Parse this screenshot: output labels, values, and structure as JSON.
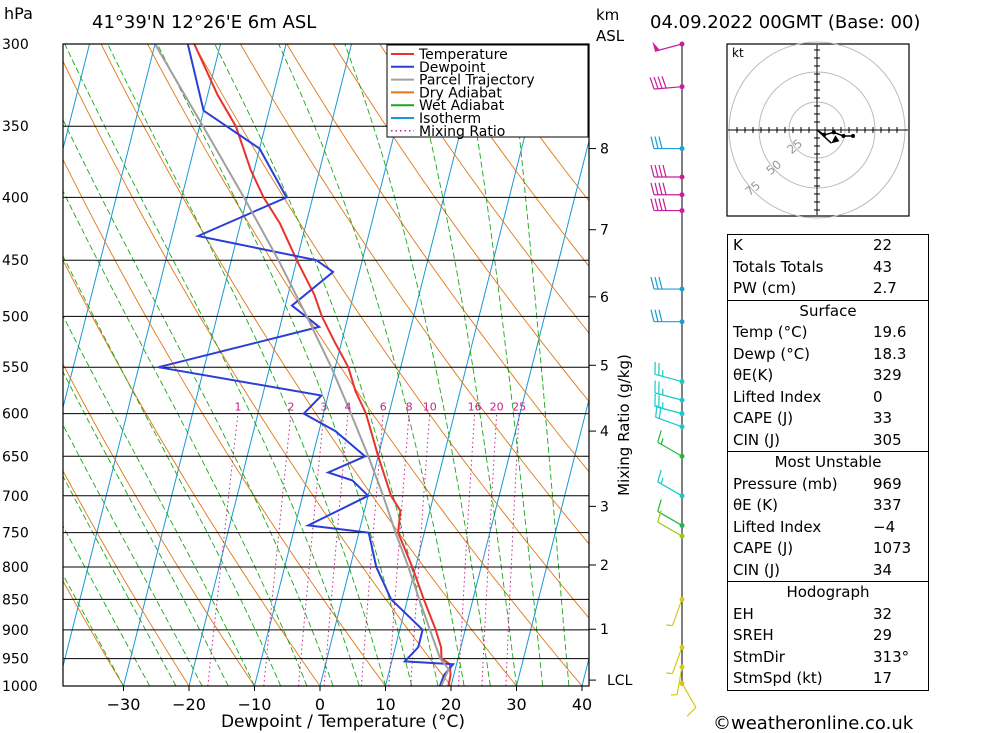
{
  "header": {
    "unit_left": "hPa",
    "location": "41°39'N  12°26'E  6m  ASL",
    "km_label": "km",
    "asl_label": "ASL",
    "date": "04.09.2022  00GMT  (Base: 00)"
  },
  "chart_data": {
    "type": "line",
    "title": "41°39'N  12°26'E  6m  ASL",
    "xlabel": "Dewpoint  /  Temperature  (°C)",
    "ylabel": "hPa",
    "xlim": [
      -40,
      40
    ],
    "ylim": [
      1000,
      300
    ],
    "y_scale": "log",
    "skew": "temperature lines skewed to the right with height",
    "pressure_ticks": [
      300,
      350,
      400,
      450,
      500,
      550,
      600,
      650,
      700,
      750,
      800,
      850,
      900,
      950,
      1000
    ],
    "temp_ticks": [
      -30,
      -20,
      -10,
      0,
      10,
      20,
      30,
      40
    ],
    "km_ticks": [
      {
        "label": "8",
        "p": 365
      },
      {
        "label": "7",
        "p": 425
      },
      {
        "label": "6",
        "p": 482
      },
      {
        "label": "5",
        "p": 548
      },
      {
        "label": "4",
        "p": 620
      },
      {
        "label": "3",
        "p": 714
      },
      {
        "label": "2",
        "p": 797
      },
      {
        "label": "1",
        "p": 899
      },
      {
        "label": "LCL",
        "p": 989
      }
    ],
    "mixing_ratio_label": "Mixing Ratio (g/kg)",
    "mixing_ratio_values": [
      "1",
      "2",
      "3",
      "4",
      "6",
      "8",
      "10",
      "16",
      "20",
      "25"
    ],
    "legend": [
      {
        "name": "Temperature",
        "color": "#e8322c",
        "style": "solid"
      },
      {
        "name": "Dewpoint",
        "color": "#2b3fd8",
        "style": "solid"
      },
      {
        "name": "Parcel Trajectory",
        "color": "#a0a0a0",
        "style": "solid"
      },
      {
        "name": "Dry Adiabat",
        "color": "#e07818",
        "style": "solid"
      },
      {
        "name": "Wet Adiabat",
        "color": "#18a818",
        "style": "solid"
      },
      {
        "name": "Isotherm",
        "color": "#1898d8",
        "style": "solid"
      },
      {
        "name": "Mixing Ratio",
        "color": "#c8208c",
        "style": "dotted"
      }
    ],
    "series": [
      {
        "name": "Temperature",
        "color": "#e8322c",
        "points": [
          [
            1000,
            19.6
          ],
          [
            980,
            19.5
          ],
          [
            960,
            19
          ],
          [
            950,
            17.5
          ],
          [
            930,
            17
          ],
          [
            900,
            15.5
          ],
          [
            850,
            12.5
          ],
          [
            800,
            9.5
          ],
          [
            750,
            6
          ],
          [
            720,
            5.5
          ],
          [
            700,
            3.5
          ],
          [
            650,
            0
          ],
          [
            600,
            -3.5
          ],
          [
            575,
            -6
          ],
          [
            550,
            -8
          ],
          [
            525,
            -11
          ],
          [
            500,
            -14
          ],
          [
            480,
            -16
          ],
          [
            450,
            -20
          ],
          [
            420,
            -24
          ],
          [
            400,
            -27.5
          ],
          [
            380,
            -30.5
          ],
          [
            350,
            -34.5
          ],
          [
            330,
            -38.5
          ],
          [
            300,
            -44
          ]
        ]
      },
      {
        "name": "Dewpoint",
        "color": "#2b3fd8",
        "points": [
          [
            1000,
            18.3
          ],
          [
            980,
            18.5
          ],
          [
            960,
            19.5
          ],
          [
            955,
            12
          ],
          [
            930,
            13.5
          ],
          [
            900,
            13.5
          ],
          [
            850,
            7.5
          ],
          [
            800,
            4
          ],
          [
            750,
            1.5
          ],
          [
            740,
            -8
          ],
          [
            700,
            0
          ],
          [
            680,
            -3
          ],
          [
            670,
            -7
          ],
          [
            650,
            -2
          ],
          [
            620,
            -7.5
          ],
          [
            600,
            -13
          ],
          [
            580,
            -11
          ],
          [
            550,
            -37
          ],
          [
            510,
            -14
          ],
          [
            490,
            -19
          ],
          [
            460,
            -14
          ],
          [
            450,
            -17
          ],
          [
            430,
            -36
          ],
          [
            400,
            -24
          ],
          [
            365,
            -30
          ],
          [
            340,
            -40
          ],
          [
            300,
            -45
          ]
        ]
      },
      {
        "name": "Parcel Trajectory",
        "color": "#a0a0a0",
        "points": [
          [
            1000,
            18.5
          ],
          [
            969,
            19
          ],
          [
            950,
            17.3
          ],
          [
            900,
            14.6
          ],
          [
            850,
            11.8
          ],
          [
            800,
            8.9
          ],
          [
            750,
            5.6
          ],
          [
            700,
            2.3
          ],
          [
            650,
            -1.5
          ],
          [
            600,
            -5.8
          ],
          [
            550,
            -10.6
          ],
          [
            500,
            -16.3
          ],
          [
            450,
            -22.8
          ],
          [
            400,
            -30.5
          ],
          [
            350,
            -39.5
          ],
          [
            300,
            -50
          ]
        ]
      }
    ],
    "wind_barbs": [
      {
        "p": 300,
        "dir": 255,
        "speed": 50,
        "color": "#c81e9c"
      },
      {
        "p": 325,
        "dir": 265,
        "speed": 40,
        "color": "#c81e9c"
      },
      {
        "p": 365,
        "dir": 270,
        "speed": 30,
        "color": "#1aa0d8"
      },
      {
        "p": 385,
        "dir": 270,
        "speed": 40,
        "color": "#c81e9c"
      },
      {
        "p": 398,
        "dir": 270,
        "speed": 40,
        "color": "#c81e9c"
      },
      {
        "p": 410,
        "dir": 270,
        "speed": 40,
        "color": "#c81e9c"
      },
      {
        "p": 475,
        "dir": 270,
        "speed": 30,
        "color": "#1aa0d8"
      },
      {
        "p": 505,
        "dir": 270,
        "speed": 30,
        "color": "#1aa0d8"
      },
      {
        "p": 565,
        "dir": 285,
        "speed": 25,
        "color": "#18c8c8"
      },
      {
        "p": 585,
        "dir": 285,
        "speed": 25,
        "color": "#18c8c8"
      },
      {
        "p": 600,
        "dir": 285,
        "speed": 25,
        "color": "#18c8c8"
      },
      {
        "p": 615,
        "dir": 290,
        "speed": 20,
        "color": "#18c8c8"
      },
      {
        "p": 650,
        "dir": 300,
        "speed": 15,
        "color": "#20b840"
      },
      {
        "p": 700,
        "dir": 300,
        "speed": 15,
        "color": "#18c8c8"
      },
      {
        "p": 740,
        "dir": 300,
        "speed": 10,
        "color": "#20b840"
      },
      {
        "p": 755,
        "dir": 300,
        "speed": 10,
        "color": "#98c818"
      },
      {
        "p": 850,
        "dir": 200,
        "speed": 5,
        "color": "#d8c818"
      },
      {
        "p": 930,
        "dir": 200,
        "speed": 5,
        "color": "#d8c818"
      },
      {
        "p": 965,
        "dir": 190,
        "speed": 5,
        "color": "#d8c818"
      },
      {
        "p": 995,
        "dir": 150,
        "speed": 10,
        "color": "#d8c818"
      }
    ],
    "hodograph": {
      "unit": "kt",
      "rings": [
        "25",
        "50",
        "75"
      ],
      "points": [
        [
          0,
          0
        ],
        [
          6,
          -4
        ],
        [
          14,
          -2
        ],
        [
          22,
          -5
        ],
        [
          30,
          -5
        ]
      ],
      "storm_motion": [
        12,
        -11
      ]
    }
  },
  "stats": {
    "indices": [
      {
        "label": "K",
        "value": "22"
      },
      {
        "label": "Totals Totals",
        "value": "43"
      },
      {
        "label": "PW (cm)",
        "value": "2.7"
      }
    ],
    "surface_title": "Surface",
    "surface": [
      {
        "label": "Temp (°C)",
        "value": "19.6"
      },
      {
        "label": "Dewp (°C)",
        "value": "18.3"
      },
      {
        "label": "θE(K)",
        "value": "329"
      },
      {
        "label": "Lifted Index",
        "value": "0"
      },
      {
        "label": "CAPE (J)",
        "value": "33"
      },
      {
        "label": "CIN (J)",
        "value": "305"
      }
    ],
    "unstable_title": "Most Unstable",
    "unstable": [
      {
        "label": "Pressure (mb)",
        "value": "969"
      },
      {
        "label": "θE (K)",
        "value": "337"
      },
      {
        "label": "Lifted Index",
        "value": "−4"
      },
      {
        "label": "CAPE (J)",
        "value": "1073"
      },
      {
        "label": "CIN (J)",
        "value": "34"
      }
    ],
    "hodo_title": "Hodograph",
    "hodo": [
      {
        "label": "EH",
        "value": "32"
      },
      {
        "label": "SREH",
        "value": "29"
      },
      {
        "label": "StmDir",
        "value": "313°"
      },
      {
        "label": "StmSpd (kt)",
        "value": "17"
      }
    ]
  },
  "footer": {
    "credit": "©weatheronline.co.uk"
  }
}
